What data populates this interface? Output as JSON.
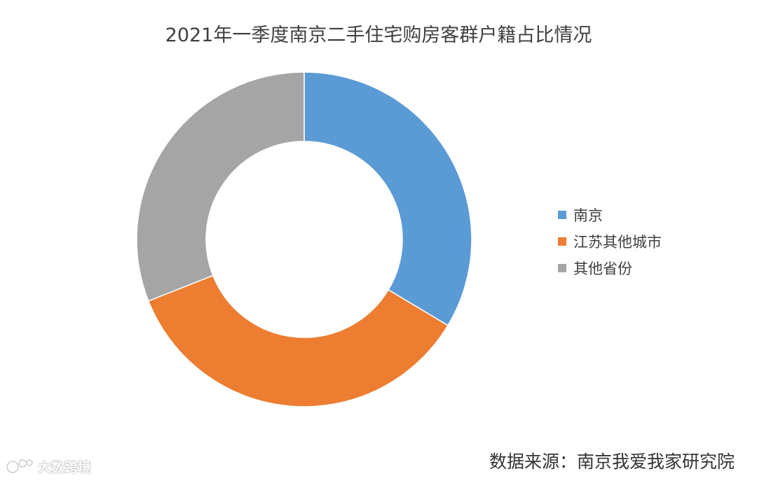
{
  "chart_data": {
    "type": "pie",
    "donut": true,
    "title": "2021年一季度南京二手住宅购房客群户籍占比情况",
    "categories": [
      "南京",
      "江苏其他城市",
      "其他省份"
    ],
    "values": [
      33.6,
      35.4,
      31.0
    ],
    "colors": [
      "#5B9BD5",
      "#ED7D31",
      "#A5A5A5"
    ],
    "legend_position": "right"
  },
  "source": "数据来源：南京我爱我家研究院",
  "watermark": "大数跨境"
}
